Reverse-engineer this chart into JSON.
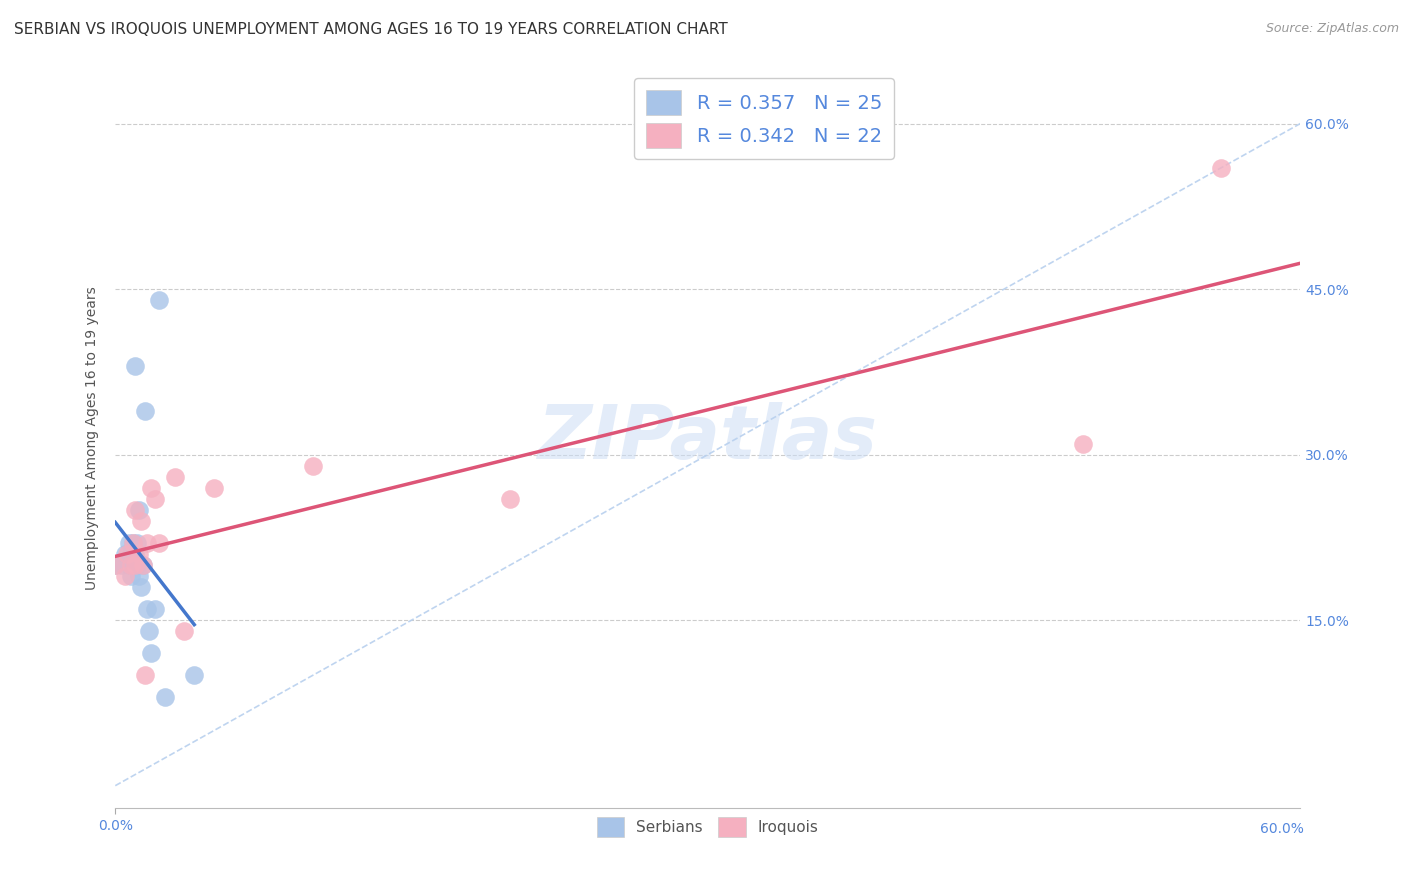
{
  "title": "SERBIAN VS IROQUOIS UNEMPLOYMENT AMONG AGES 16 TO 19 YEARS CORRELATION CHART",
  "source": "Source: ZipAtlas.com",
  "ylabel": "Unemployment Among Ages 16 to 19 years",
  "xlim": [
    0.0,
    0.6
  ],
  "ylim": [
    -0.02,
    0.65
  ],
  "ytick_labels": [
    "15.0%",
    "30.0%",
    "45.0%",
    "60.0%"
  ],
  "ytick_values": [
    0.15,
    0.3,
    0.45,
    0.6
  ],
  "serbian_color": "#a8c4e8",
  "iroquois_color": "#f5b0c0",
  "serbian_line_color": "#4477cc",
  "iroquois_line_color": "#dd5577",
  "diagonal_color": "#b8d0ee",
  "R_serbian": 0.357,
  "N_serbian": 25,
  "R_iroquois": 0.342,
  "N_iroquois": 22,
  "serbian_x": [
    0.0,
    0.003,
    0.005,
    0.007,
    0.007,
    0.008,
    0.008,
    0.009,
    0.009,
    0.01,
    0.01,
    0.011,
    0.011,
    0.012,
    0.012,
    0.013,
    0.014,
    0.015,
    0.016,
    0.017,
    0.018,
    0.02,
    0.022,
    0.025,
    0.04
  ],
  "serbian_y": [
    0.2,
    0.2,
    0.21,
    0.2,
    0.22,
    0.19,
    0.21,
    0.2,
    0.22,
    0.21,
    0.38,
    0.2,
    0.22,
    0.19,
    0.25,
    0.18,
    0.2,
    0.34,
    0.16,
    0.14,
    0.12,
    0.16,
    0.44,
    0.08,
    0.1
  ],
  "iroquois_x": [
    0.0,
    0.005,
    0.006,
    0.008,
    0.009,
    0.01,
    0.01,
    0.012,
    0.013,
    0.014,
    0.015,
    0.016,
    0.018,
    0.02,
    0.022,
    0.03,
    0.035,
    0.05,
    0.1,
    0.2,
    0.49,
    0.56
  ],
  "iroquois_y": [
    0.2,
    0.19,
    0.21,
    0.2,
    0.22,
    0.2,
    0.25,
    0.21,
    0.24,
    0.2,
    0.1,
    0.22,
    0.27,
    0.26,
    0.22,
    0.28,
    0.14,
    0.27,
    0.29,
    0.26,
    0.31,
    0.56
  ],
  "legend_serbian_label": "R = 0.357   N = 25",
  "legend_iroquois_label": "R = 0.342   N = 22",
  "watermark": "ZIPatlas",
  "background_color": "#ffffff",
  "title_fontsize": 11,
  "axis_label_fontsize": 10,
  "tick_fontsize": 10,
  "legend_fontsize": 14
}
